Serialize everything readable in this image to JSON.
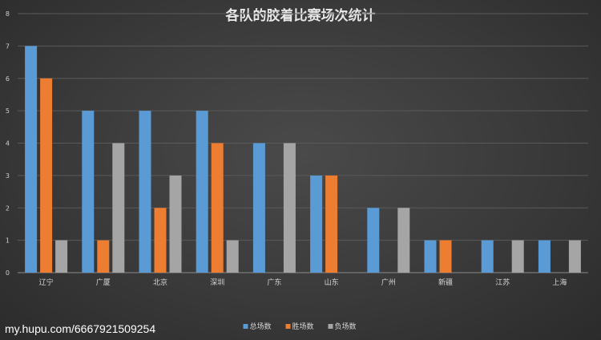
{
  "chart_data": {
    "type": "bar",
    "title": "各队的胶着比赛场次统计",
    "categories": [
      "辽宁",
      "广厦",
      "北京",
      "深圳",
      "广东",
      "山东",
      "广州",
      "新疆",
      "江苏",
      "上海"
    ],
    "series": [
      {
        "name": "总场数",
        "color": "#5b9bd5",
        "values": [
          7,
          5,
          5,
          5,
          4,
          3,
          2,
          1,
          1,
          1
        ]
      },
      {
        "name": "胜场数",
        "color": "#ed7d31",
        "values": [
          6,
          1,
          2,
          4,
          0,
          3,
          0,
          1,
          0,
          0
        ]
      },
      {
        "name": "负场数",
        "color": "#a5a5a5",
        "values": [
          1,
          4,
          3,
          1,
          4,
          0,
          2,
          0,
          1,
          1
        ]
      }
    ],
    "ylim": [
      0,
      8
    ],
    "yticks": [
      0,
      1,
      2,
      3,
      4,
      5,
      6,
      7,
      8
    ],
    "grid": true,
    "legend_position": "bottom"
  },
  "watermark": "my.hupu.com/6667921509254"
}
